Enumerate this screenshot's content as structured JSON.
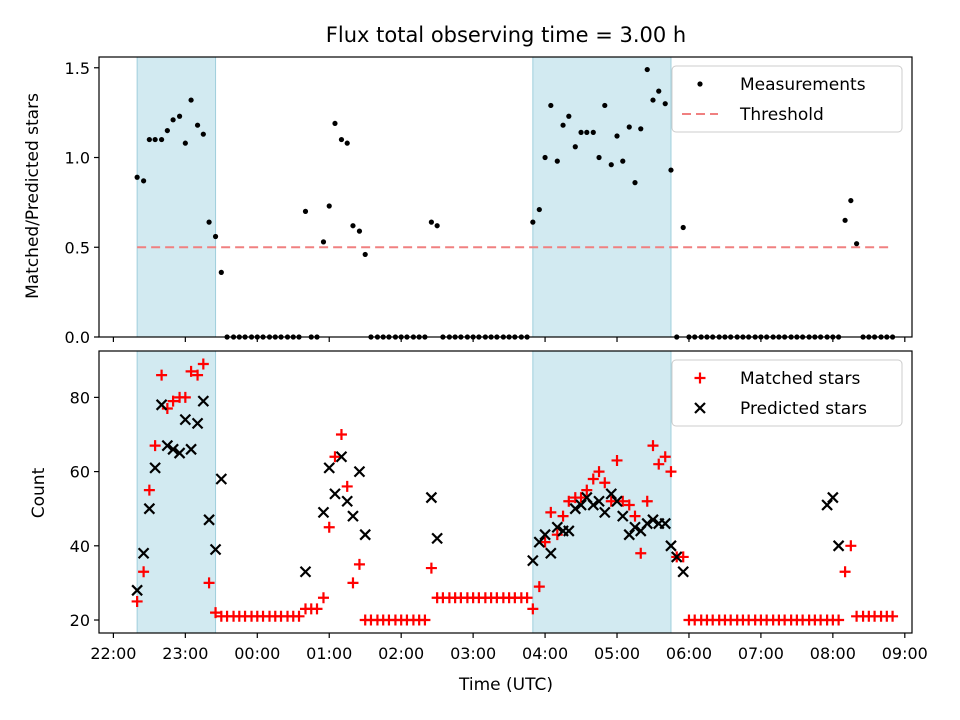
{
  "colors": {
    "band": "#add8e6",
    "threshold": "#f08080",
    "matched": "#ff0000",
    "predicted": "#000000",
    "measurement": "#000000"
  },
  "chart_data": [
    {
      "type": "scatter",
      "title": "Flux total observing time = 3.00 h",
      "ylabel": "Matched/Predicted stars",
      "xlabel": "",
      "xlim": [
        21.8,
        33.1
      ],
      "ylim": [
        0.0,
        1.56
      ],
      "yticks": [
        0.0,
        0.5,
        1.0,
        1.5
      ],
      "ytick_labels": [
        "0.0",
        "0.5",
        "1.0",
        "1.5"
      ],
      "bands": [
        [
          22.33,
          23.42
        ],
        [
          27.83,
          29.75
        ]
      ],
      "legend": {
        "position": "top-right",
        "entries": [
          "Measurements",
          "Threshold"
        ]
      },
      "threshold": {
        "name": "Threshold",
        "value": 0.5,
        "x_range": [
          22.33,
          32.83
        ]
      },
      "series": [
        {
          "name": "Measurements",
          "x": [
            22.33,
            22.42,
            22.5,
            22.58,
            22.67,
            22.75,
            22.83,
            22.92,
            23.0,
            23.08,
            23.17,
            23.25,
            23.33,
            23.42,
            23.5,
            23.58,
            23.67,
            23.75,
            23.83,
            23.92,
            24.0,
            24.08,
            24.17,
            24.25,
            24.33,
            24.42,
            24.5,
            24.58,
            24.67,
            24.75,
            24.83,
            24.92,
            25.0,
            25.08,
            25.17,
            25.25,
            25.33,
            25.42,
            25.5,
            25.58,
            25.67,
            25.75,
            25.83,
            25.92,
            26.0,
            26.08,
            26.17,
            26.25,
            26.33,
            26.42,
            26.5,
            26.58,
            26.67,
            26.75,
            26.83,
            26.92,
            27.0,
            27.08,
            27.17,
            27.25,
            27.33,
            27.42,
            27.5,
            27.58,
            27.67,
            27.75,
            27.83,
            27.92,
            28.0,
            28.08,
            28.17,
            28.25,
            28.33,
            28.42,
            28.5,
            28.58,
            28.67,
            28.75,
            28.83,
            28.92,
            29.0,
            29.08,
            29.17,
            29.25,
            29.33,
            29.42,
            29.5,
            29.58,
            29.67,
            29.75,
            29.83,
            29.92,
            30.0,
            30.08,
            30.17,
            30.25,
            30.33,
            30.42,
            30.5,
            30.58,
            30.67,
            30.75,
            30.83,
            30.92,
            31.0,
            31.08,
            31.17,
            31.25,
            31.33,
            31.42,
            31.5,
            31.58,
            31.67,
            31.75,
            31.83,
            31.92,
            32.0,
            32.08,
            32.17,
            32.25,
            32.33,
            32.42,
            32.5,
            32.58,
            32.67,
            32.75,
            32.83
          ],
          "y": [
            0.89,
            0.87,
            1.1,
            1.1,
            1.1,
            1.15,
            1.21,
            1.23,
            1.08,
            1.32,
            1.18,
            1.13,
            0.64,
            0.56,
            0.36,
            0,
            0,
            0,
            0,
            0,
            0,
            0,
            0,
            0,
            0,
            0,
            0,
            0,
            0.7,
            0,
            0,
            0.53,
            0.73,
            1.19,
            1.1,
            1.08,
            0.62,
            0.59,
            0.46,
            0,
            0,
            0,
            0,
            0,
            0,
            0,
            0,
            0,
            0,
            0.64,
            0.62,
            0,
            0,
            0,
            0,
            0,
            0,
            0,
            0,
            0,
            0,
            0,
            0,
            0,
            0,
            0,
            0.64,
            0.71,
            1.0,
            1.29,
            0.98,
            1.18,
            1.23,
            1.06,
            1.14,
            1.14,
            1.14,
            1.0,
            1.29,
            0.96,
            1.12,
            0.98,
            1.17,
            0.86,
            1.16,
            1.49,
            1.32,
            1.37,
            1.3,
            0.93,
            0,
            0.61,
            0,
            0,
            0,
            0,
            0,
            0,
            0,
            0,
            0,
            0,
            0,
            0,
            0,
            0,
            0,
            0,
            0,
            0,
            0,
            0,
            0,
            0,
            0,
            0,
            0,
            0,
            0.65,
            0.76,
            0.52,
            0,
            0,
            0,
            0,
            0,
            0
          ]
        }
      ]
    },
    {
      "type": "scatter",
      "title": "",
      "ylabel": "Count",
      "xlabel": "Time (UTC)",
      "xlim": [
        21.8,
        33.1
      ],
      "ylim": [
        16.5,
        92.5
      ],
      "yticks": [
        20,
        40,
        60,
        80
      ],
      "ytick_labels": [
        "20",
        "40",
        "60",
        "80"
      ],
      "xticks": [
        22,
        23,
        24,
        25,
        26,
        27,
        28,
        29,
        30,
        31,
        32,
        33
      ],
      "xtick_labels": [
        "22:00",
        "23:00",
        "00:00",
        "01:00",
        "02:00",
        "03:00",
        "04:00",
        "05:00",
        "06:00",
        "07:00",
        "08:00",
        "09:00"
      ],
      "bands": [
        [
          22.33,
          23.42
        ],
        [
          27.83,
          29.75
        ]
      ],
      "legend": {
        "position": "top-right",
        "entries": [
          "Matched stars",
          "Predicted stars"
        ]
      },
      "series": [
        {
          "name": "Matched stars",
          "marker": "plus",
          "x": [
            22.33,
            22.42,
            22.5,
            22.58,
            22.67,
            22.75,
            22.83,
            22.92,
            23.0,
            23.08,
            23.17,
            23.25,
            23.33,
            23.42,
            23.5,
            23.58,
            23.67,
            23.75,
            23.83,
            23.92,
            24.0,
            24.08,
            24.17,
            24.25,
            24.33,
            24.42,
            24.5,
            24.58,
            24.67,
            24.75,
            24.83,
            24.92,
            25.0,
            25.08,
            25.17,
            25.25,
            25.33,
            25.42,
            25.5,
            25.58,
            25.67,
            25.75,
            25.83,
            25.92,
            26.0,
            26.08,
            26.17,
            26.25,
            26.33,
            26.42,
            26.5,
            26.58,
            26.67,
            26.75,
            26.83,
            26.92,
            27.0,
            27.08,
            27.17,
            27.25,
            27.33,
            27.42,
            27.5,
            27.58,
            27.67,
            27.75,
            27.83,
            27.92,
            28.0,
            28.08,
            28.17,
            28.25,
            28.33,
            28.42,
            28.5,
            28.58,
            28.67,
            28.75,
            28.83,
            28.92,
            29.0,
            29.08,
            29.17,
            29.25,
            29.33,
            29.42,
            29.5,
            29.58,
            29.67,
            29.75,
            29.83,
            29.92,
            30.0,
            30.08,
            30.17,
            30.25,
            30.33,
            30.42,
            30.5,
            30.58,
            30.67,
            30.75,
            30.83,
            30.92,
            31.0,
            31.08,
            31.17,
            31.25,
            31.33,
            31.42,
            31.5,
            31.58,
            31.67,
            31.75,
            31.83,
            31.92,
            32.0,
            32.08,
            32.17,
            32.25,
            32.33,
            32.42,
            32.5,
            32.58,
            32.67,
            32.75,
            32.83
          ],
          "y": [
            25,
            33,
            55,
            67,
            86,
            77,
            79,
            80,
            80,
            87,
            86,
            89,
            30,
            22,
            21,
            21,
            21,
            21,
            21,
            21,
            21,
            21,
            21,
            21,
            21,
            21,
            21,
            21,
            23,
            23,
            23,
            26,
            45,
            64,
            70,
            56,
            30,
            35,
            20,
            20,
            20,
            20,
            20,
            20,
            20,
            20,
            20,
            20,
            20,
            34,
            26,
            26,
            26,
            26,
            26,
            26,
            26,
            26,
            26,
            26,
            26,
            26,
            26,
            26,
            26,
            26,
            23,
            29,
            41,
            49,
            43,
            48,
            52,
            53,
            53,
            55,
            58,
            60,
            57,
            52,
            63,
            52,
            51,
            48,
            38,
            52,
            67,
            62,
            64,
            60,
            37,
            37,
            20,
            20,
            20,
            20,
            20,
            20,
            20,
            20,
            20,
            20,
            20,
            20,
            20,
            20,
            20,
            20,
            20,
            20,
            20,
            20,
            20,
            20,
            20,
            20,
            20,
            20,
            33,
            40,
            21,
            21,
            21,
            21,
            21,
            21,
            21
          ]
        },
        {
          "name": "Predicted stars",
          "marker": "x",
          "x": [
            22.33,
            22.42,
            22.5,
            22.58,
            22.67,
            22.75,
            22.83,
            22.92,
            23.0,
            23.08,
            23.17,
            23.25,
            23.33,
            23.42,
            23.5,
            24.67,
            24.92,
            25.0,
            25.08,
            25.17,
            25.25,
            25.33,
            25.42,
            25.5,
            26.42,
            26.5,
            27.83,
            27.92,
            28.0,
            28.08,
            28.17,
            28.25,
            28.33,
            28.42,
            28.5,
            28.58,
            28.67,
            28.75,
            28.83,
            28.92,
            29.0,
            29.08,
            29.17,
            29.25,
            29.33,
            29.42,
            29.5,
            29.58,
            29.67,
            29.75,
            29.83,
            29.92,
            31.92,
            32.0,
            32.08
          ],
          "y": [
            28,
            38,
            50,
            61,
            78,
            67,
            66,
            65,
            74,
            66,
            73,
            79,
            47,
            39,
            58,
            33,
            49,
            61,
            54,
            64,
            52,
            48,
            60,
            43,
            53,
            42,
            36,
            41,
            43,
            38,
            45,
            44,
            44,
            50,
            51,
            53,
            51,
            52,
            49,
            54,
            52,
            48,
            43,
            45,
            44,
            46,
            47,
            46,
            46,
            40,
            37,
            33,
            51,
            53,
            40
          ]
        }
      ]
    }
  ]
}
